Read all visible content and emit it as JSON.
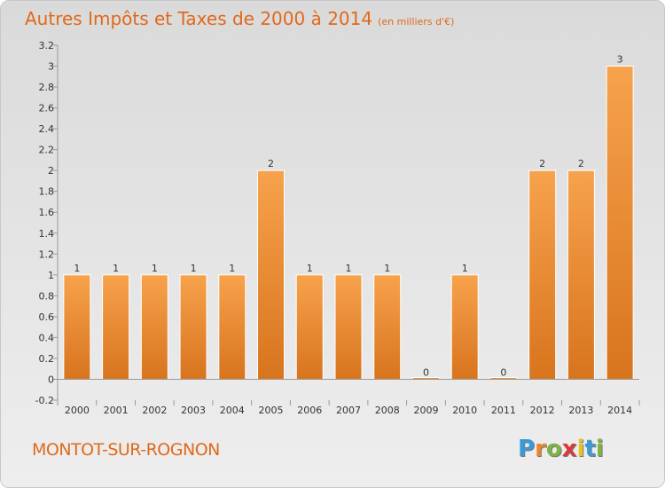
{
  "header": {
    "title": "Autres Impôts et Taxes de 2000 à 2014",
    "unit": "(en milliers d'€)"
  },
  "footer": {
    "commune": "MONTOT-SUR-ROGNON",
    "logo_letters": [
      "P",
      "r",
      "o",
      "x",
      "i",
      "t",
      "i"
    ],
    "logo_colors": [
      "#3a9ad9",
      "#e8862a",
      "#7cb342",
      "#d83a3a",
      "#e8c12a",
      "#3a9ad9",
      "#7cb342"
    ]
  },
  "chart_data": {
    "type": "bar",
    "categories": [
      "2000",
      "2001",
      "2002",
      "2003",
      "2004",
      "2005",
      "2006",
      "2007",
      "2008",
      "2009",
      "2010",
      "2011",
      "2012",
      "2013",
      "2014"
    ],
    "values": [
      1,
      1,
      1,
      1,
      1,
      2,
      1,
      1,
      1,
      0,
      1,
      0,
      2,
      2,
      3
    ],
    "data_labels": [
      "1",
      "1",
      "1",
      "1",
      "1",
      "2",
      "1",
      "1",
      "1",
      "0",
      "1",
      "0",
      "2",
      "2",
      "3"
    ],
    "y_ticks": [
      "-0.2",
      "0",
      "0.2",
      "0.4",
      "0.6",
      "0.8",
      "1",
      "1.2",
      "1.4",
      "1.6",
      "1.8",
      "2",
      "2.2",
      "2.4",
      "2.6",
      "2.8",
      "3",
      "3.2"
    ],
    "ylim": [
      -0.2,
      3.2
    ],
    "grid": false,
    "bar_color": "#f0922e",
    "axis_color": "#9a9a9a",
    "label_color": "#333333"
  }
}
